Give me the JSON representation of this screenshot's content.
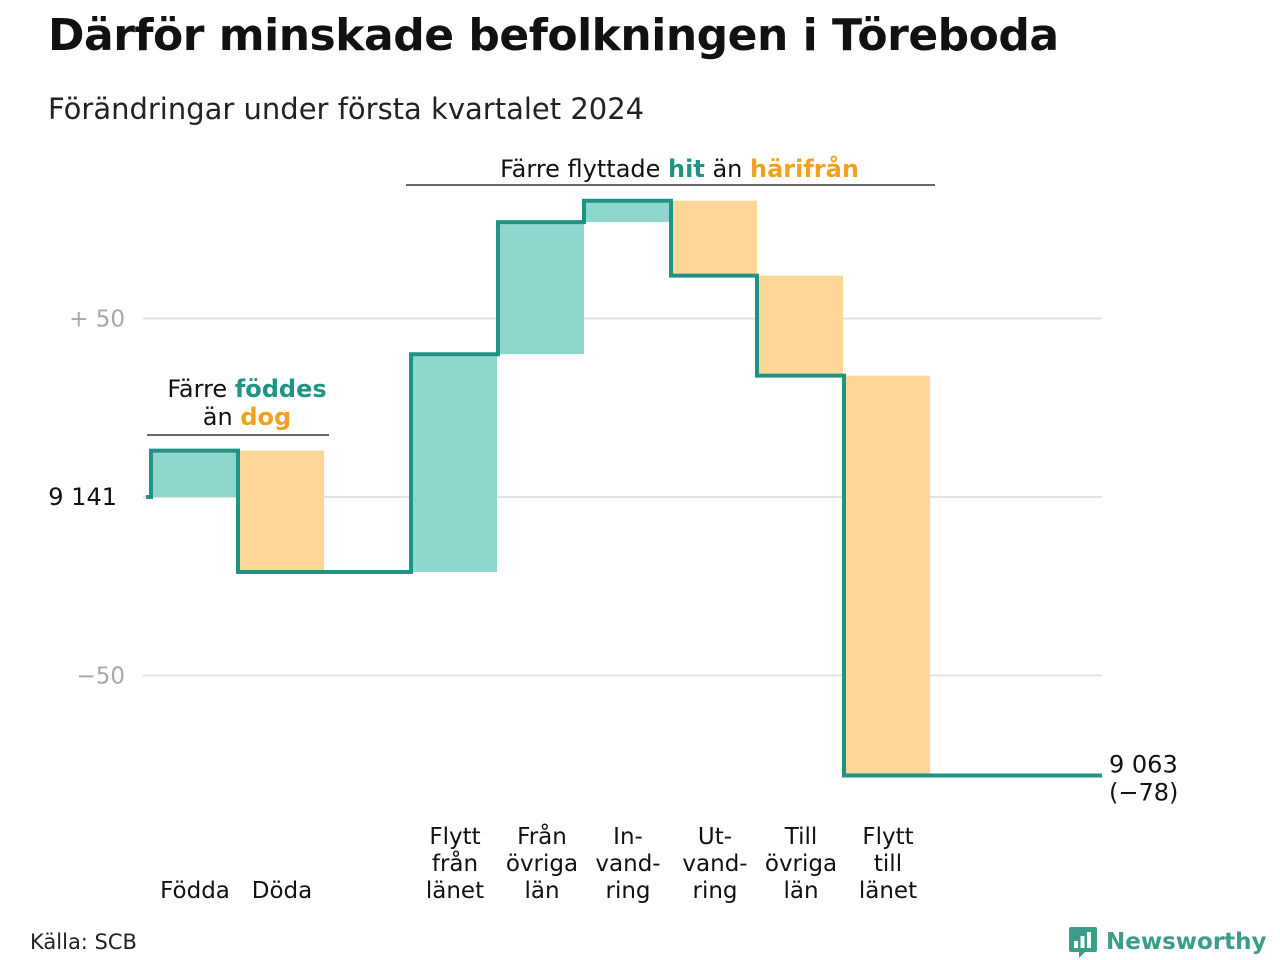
{
  "title": "Därför minskade befolkningen i Töreboda",
  "subtitle": "Förändringar under första kvartalet 2024",
  "source": "Källa: SCB",
  "logo": "Newsworthy",
  "colors": {
    "increase": "#8fd6cc",
    "decrease": "#fcd798",
    "line": "#1f9485",
    "teal_text": "#1f9485",
    "orange_text": "#f0a21f",
    "grid": "#e3e3e3",
    "tick": "#a8a8a8"
  },
  "chart_data": {
    "type": "waterfall",
    "start_value": 9141,
    "start_label": "9 141",
    "end_value": 9063,
    "end_label": "9 063",
    "end_change_label": "(−78)",
    "yticks": [
      {
        "value": 50,
        "label": "+  50"
      },
      {
        "value": -50,
        "label": "−50"
      }
    ],
    "ylim": [
      -85,
      85
    ],
    "grid": true,
    "steps": [
      {
        "label_lines": [
          "Födda"
        ],
        "change": 13,
        "kind": "increase",
        "group": "natural"
      },
      {
        "label_lines": [
          "Döda"
        ],
        "change": -34,
        "kind": "decrease",
        "group": "natural"
      },
      {
        "label_lines": [
          "Flytt",
          "från",
          "länet"
        ],
        "change": 61,
        "kind": "increase",
        "group": "migration"
      },
      {
        "label_lines": [
          "Från",
          "övriga",
          "län"
        ],
        "change": 37,
        "kind": "increase",
        "group": "migration"
      },
      {
        "label_lines": [
          "In-",
          "vand-",
          "ring"
        ],
        "change": 6,
        "kind": "increase",
        "group": "migration"
      },
      {
        "label_lines": [
          "Ut-",
          "vand-",
          "ring"
        ],
        "change": -21,
        "kind": "decrease",
        "group": "migration"
      },
      {
        "label_lines": [
          "Till",
          "övriga",
          "län"
        ],
        "change": -28,
        "kind": "decrease",
        "group": "migration"
      },
      {
        "label_lines": [
          "Flytt",
          "till",
          "länet"
        ],
        "change": -112,
        "kind": "decrease",
        "group": "migration"
      }
    ],
    "annotations": [
      {
        "group": "natural",
        "lines": [
          [
            {
              "text": "Färre ",
              "color": "dark"
            },
            {
              "text": "föddes",
              "color": "teal"
            }
          ],
          [
            {
              "text": "än ",
              "color": "dark"
            },
            {
              "text": "dog",
              "color": "orange"
            }
          ]
        ]
      },
      {
        "group": "migration",
        "lines": [
          [
            {
              "text": "Färre flyttade ",
              "color": "dark"
            },
            {
              "text": "hit",
              "color": "teal"
            },
            {
              "text": " än ",
              "color": "dark"
            },
            {
              "text": "härifrån",
              "color": "orange"
            }
          ]
        ]
      }
    ]
  }
}
